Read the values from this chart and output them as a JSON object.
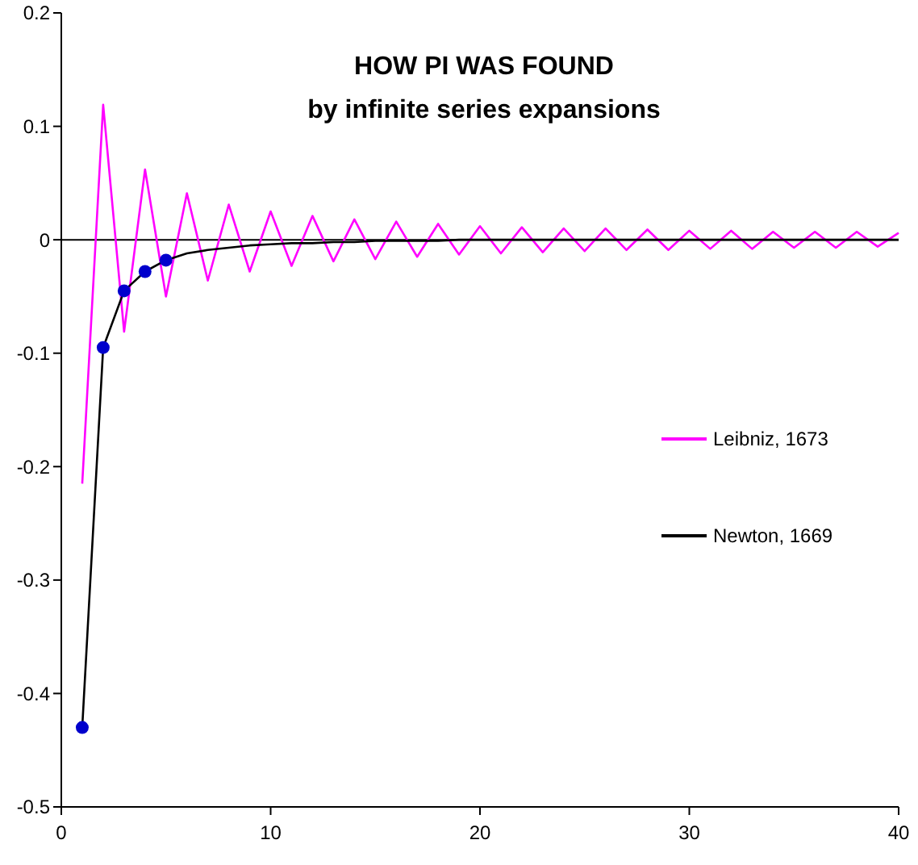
{
  "chart_data": {
    "type": "line",
    "title": "HOW PI WAS FOUND",
    "subtitle": "by infinite series expansions",
    "x": [
      1,
      2,
      3,
      4,
      5,
      6,
      7,
      8,
      9,
      10,
      11,
      12,
      13,
      14,
      15,
      16,
      17,
      18,
      19,
      20,
      21,
      22,
      23,
      24,
      25,
      26,
      27,
      28,
      29,
      30,
      31,
      32,
      33,
      34,
      35,
      36,
      37,
      38,
      39,
      40
    ],
    "series": [
      {
        "name": "Leibniz, 1673",
        "color": "#ff00ff",
        "values": [
          -0.215,
          0.119,
          -0.081,
          0.062,
          -0.05,
          0.041,
          -0.036,
          0.031,
          -0.028,
          0.025,
          -0.023,
          0.021,
          -0.019,
          0.018,
          -0.017,
          0.016,
          -0.015,
          0.014,
          -0.013,
          0.012,
          -0.012,
          0.011,
          -0.011,
          0.01,
          -0.01,
          0.01,
          -0.009,
          0.009,
          -0.009,
          0.008,
          -0.008,
          0.008,
          -0.008,
          0.007,
          -0.007,
          0.007,
          -0.007,
          0.007,
          -0.006,
          0.006
        ]
      },
      {
        "name": "Newton, 1669",
        "color": "#000000",
        "values": [
          -0.43,
          -0.095,
          -0.045,
          -0.028,
          -0.018,
          -0.012,
          -0.009,
          -0.007,
          -0.005,
          -0.004,
          -0.003,
          -0.003,
          -0.002,
          -0.002,
          -0.001,
          -0.001,
          -0.001,
          -0.001,
          0,
          0,
          0,
          0,
          0,
          0,
          0,
          0,
          0,
          0,
          0,
          0,
          0,
          0,
          0,
          0,
          0,
          0,
          0,
          0,
          0,
          0
        ]
      },
      {
        "type": "scatter",
        "color": "#0000cc",
        "marker": "circle",
        "x": [
          1,
          2,
          3,
          4,
          5
        ],
        "values": [
          -0.43,
          -0.095,
          -0.045,
          -0.028,
          -0.018
        ]
      }
    ],
    "xlim": [
      0,
      40
    ],
    "xticks": [
      0,
      10,
      20,
      30,
      40
    ],
    "ylim": [
      -0.5,
      0.2
    ],
    "yticks": [
      0.2,
      0.1,
      0,
      -0.1,
      -0.2,
      -0.3,
      -0.4,
      -0.5
    ],
    "ref_lines": [
      {
        "axis": "y",
        "value": 0,
        "color": "#000000"
      }
    ],
    "grid": false,
    "legend": "right",
    "marker": "none",
    "line_style": "solid"
  }
}
